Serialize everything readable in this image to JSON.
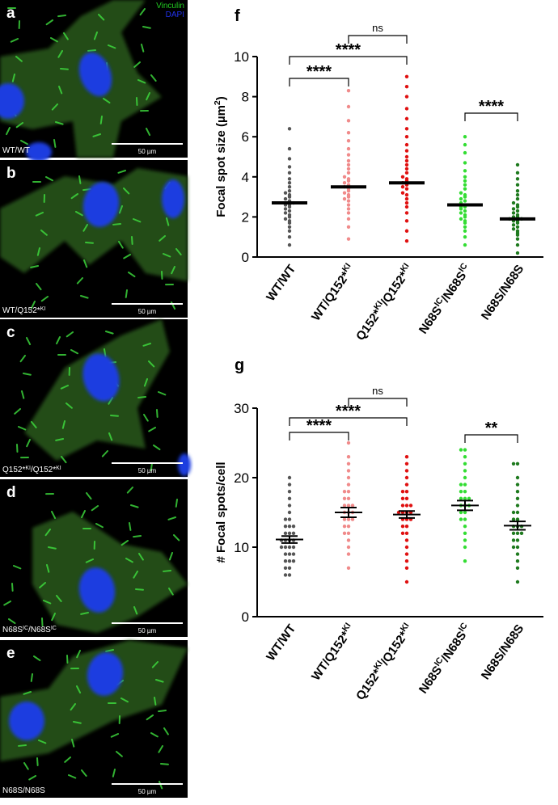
{
  "legend": [
    "Vinculin",
    "DAPI"
  ],
  "panels": [
    {
      "letter": "a",
      "label": [
        "WT/WT"
      ],
      "scale_bar": "50 µm"
    },
    {
      "letter": "b",
      "label": [
        "WT/Q152*",
        "KI"
      ],
      "scale_bar": "50 µm"
    },
    {
      "letter": "c",
      "label": [
        "Q152*",
        "KI",
        "/Q152*",
        "KI"
      ],
      "scale_bar": "50 µm"
    },
    {
      "letter": "d",
      "label": [
        "N68S",
        "IC",
        "/N68S",
        "IC"
      ],
      "scale_bar": "50 µm"
    },
    {
      "letter": "e",
      "label": [
        "N68S/N68S"
      ],
      "scale_bar": "50 µm"
    }
  ],
  "chart_data": [
    {
      "type": "dot",
      "panel": "f",
      "ylabel": [
        "Focal spot size (µm",
        "2",
        ")"
      ],
      "ylim": [
        0,
        10
      ],
      "yticks": [
        0,
        2,
        4,
        6,
        8,
        10
      ],
      "annotations": [
        "****",
        "****",
        "ns",
        "****"
      ],
      "groups": [
        {
          "label": [
            "WT/WT"
          ],
          "color": "#555555",
          "mean": 2.7,
          "values": [
            0.6,
            1.0,
            1.3,
            1.5,
            1.7,
            1.8,
            1.9,
            2.0,
            2.1,
            2.2,
            2.3,
            2.4,
            2.5,
            2.6,
            2.6,
            2.7,
            2.8,
            2.9,
            3.0,
            3.1,
            3.2,
            3.3,
            3.5,
            3.7,
            3.9,
            4.2,
            4.5,
            4.9,
            5.4,
            6.4
          ]
        },
        {
          "label": [
            "WT/Q152*",
            "KI"
          ],
          "color": "#f08a8a",
          "mean": 3.5,
          "values": [
            0.9,
            1.5,
            1.9,
            2.2,
            2.4,
            2.6,
            2.8,
            2.9,
            3.0,
            3.1,
            3.2,
            3.3,
            3.4,
            3.5,
            3.6,
            3.7,
            3.8,
            3.9,
            4.0,
            4.2,
            4.4,
            4.6,
            4.8,
            5.1,
            5.4,
            5.8,
            6.2,
            6.8,
            7.5,
            8.3
          ]
        },
        {
          "label": [
            "Q152*",
            "KI",
            "/Q152*",
            "KI"
          ],
          "color": "#e01010",
          "mean": 3.7,
          "values": [
            0.8,
            1.3,
            1.8,
            2.2,
            2.5,
            2.7,
            2.9,
            3.1,
            3.2,
            3.4,
            3.5,
            3.6,
            3.7,
            3.8,
            3.9,
            4.0,
            4.2,
            4.4,
            4.6,
            4.8,
            5.0,
            5.3,
            5.6,
            6.0,
            6.4,
            6.9,
            7.4,
            8.0,
            8.5,
            9.0
          ]
        },
        {
          "label": [
            "N68S",
            "IC",
            "/N68S",
            "IC"
          ],
          "color": "#33dd33",
          "mean": 2.6,
          "values": [
            0.6,
            1.0,
            1.3,
            1.5,
            1.7,
            1.8,
            1.9,
            2.0,
            2.1,
            2.2,
            2.3,
            2.4,
            2.5,
            2.5,
            2.6,
            2.7,
            2.8,
            2.9,
            3.0,
            3.1,
            3.2,
            3.4,
            3.6,
            3.8,
            4.0,
            4.3,
            4.7,
            5.2,
            5.6,
            6.0
          ]
        },
        {
          "label": [
            "N68S/N68S"
          ],
          "color": "#1e7a1e",
          "mean": 1.9,
          "values": [
            0.2,
            0.6,
            0.9,
            1.1,
            1.2,
            1.3,
            1.4,
            1.5,
            1.6,
            1.7,
            1.8,
            1.8,
            1.9,
            1.9,
            2.0,
            2.0,
            2.1,
            2.2,
            2.3,
            2.4,
            2.5,
            2.6,
            2.7,
            2.9,
            3.1,
            3.3,
            3.6,
            3.9,
            4.2,
            4.6
          ]
        }
      ]
    },
    {
      "type": "dot",
      "panel": "g",
      "ylabel": [
        "# Focal spots/cell"
      ],
      "ylim": [
        0,
        30
      ],
      "yticks": [
        0,
        10,
        20,
        30
      ],
      "annotations": [
        "****",
        "****",
        "ns",
        "**"
      ],
      "groups": [
        {
          "label": [
            "WT/WT"
          ],
          "color": "#555555",
          "mean": 11.1,
          "sem": 0.5,
          "values": [
            6,
            6,
            7,
            7,
            8,
            8,
            8,
            9,
            9,
            9,
            10,
            10,
            10,
            10,
            11,
            11,
            11,
            11,
            12,
            12,
            12,
            13,
            13,
            13,
            14,
            14,
            15,
            16,
            17,
            18,
            19,
            20
          ]
        },
        {
          "label": [
            "WT/Q152*",
            "KI"
          ],
          "color": "#f08a8a",
          "mean": 15.0,
          "sem": 0.7,
          "values": [
            7,
            9,
            10,
            11,
            12,
            12,
            13,
            13,
            14,
            14,
            14,
            15,
            15,
            15,
            16,
            16,
            16,
            17,
            17,
            18,
            18,
            19,
            20,
            21,
            22,
            23,
            25
          ]
        },
        {
          "label": [
            "Q152*",
            "KI",
            "/Q152*",
            "KI"
          ],
          "color": "#e01010",
          "mean": 14.7,
          "sem": 0.5,
          "values": [
            5,
            7,
            8,
            9,
            10,
            11,
            12,
            12,
            13,
            13,
            14,
            14,
            14,
            15,
            15,
            15,
            15,
            16,
            16,
            16,
            17,
            17,
            18,
            18,
            19,
            20,
            21,
            22,
            23
          ]
        },
        {
          "label": [
            "N68S",
            "IC",
            "/N68S",
            "IC"
          ],
          "color": "#33dd33",
          "mean": 16.0,
          "sem": 0.7,
          "values": [
            8,
            10,
            11,
            12,
            13,
            14,
            14,
            15,
            15,
            16,
            16,
            16,
            17,
            17,
            17,
            18,
            18,
            19,
            19,
            20,
            21,
            22,
            23,
            24,
            24
          ]
        },
        {
          "label": [
            "N68S/N68S"
          ],
          "color": "#1e7a1e",
          "mean": 13.1,
          "sem": 0.6,
          "values": [
            5,
            7,
            8,
            9,
            10,
            10,
            11,
            11,
            12,
            12,
            12,
            13,
            13,
            13,
            14,
            14,
            15,
            15,
            16,
            17,
            18,
            19,
            20,
            22,
            22
          ]
        }
      ]
    }
  ]
}
